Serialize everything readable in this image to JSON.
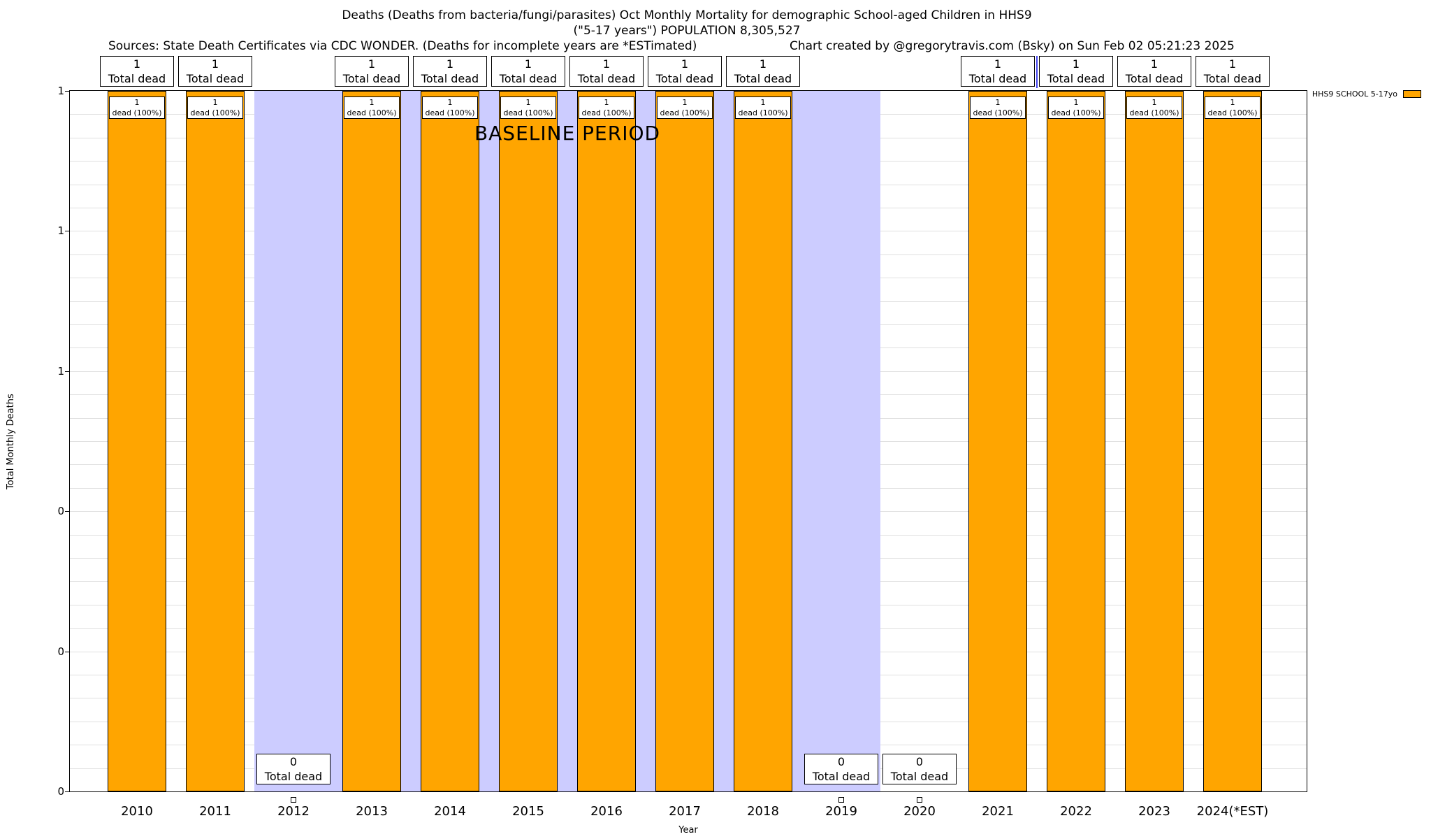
{
  "header": {
    "title_line1": "Deaths (Deaths from bacteria/fungi/parasites) Oct Monthly Mortality for demographic School-aged Children in HHS9",
    "title_line2": "(\"5-17 years\") POPULATION 8,305,527",
    "sources": "Sources: State Death Certificates via CDC WONDER. (Deaths for incomplete years are *ESTimated)",
    "credit": "Chart created by @gregorytravis.com (Bsky) on Sun Feb 02 05:21:23 2025"
  },
  "legend": {
    "label": "HHS9 SCHOOL 5-17yo",
    "swatch_color": "#FFA500"
  },
  "chart_data": {
    "type": "bar",
    "title": "Deaths (Deaths from bacteria/fungi/parasites) Oct Monthly Mortality for demographic School-aged Children in HHS9",
    "xlabel": "Year",
    "ylabel": "Total Monthly Deaths",
    "ylim": [
      0,
      1
    ],
    "grid": true,
    "categories": [
      "2010",
      "2011",
      "2012",
      "2013",
      "2014",
      "2015",
      "2016",
      "2017",
      "2018",
      "2019",
      "2020",
      "2021",
      "2022",
      "2023",
      "2024(*EST)"
    ],
    "values": [
      1,
      1,
      0,
      1,
      1,
      1,
      1,
      1,
      1,
      0,
      0,
      1,
      1,
      1,
      1
    ],
    "bar_color": "#FFA500",
    "y_tick_labels_bottom_to_top": [
      "0",
      "0",
      "0",
      "1",
      "1",
      "1"
    ],
    "y_tick_values": [
      0,
      0.2,
      0.4,
      0.6,
      0.8,
      1.0
    ],
    "labels": {
      "total_value": [
        "1",
        "1",
        "0",
        "1",
        "1",
        "1",
        "1",
        "1",
        "1",
        "0",
        "0",
        "1",
        "1",
        "1",
        "1"
      ],
      "total_caption": "Total dead",
      "inbar_value": "1",
      "inbar_caption": "dead (100%)"
    },
    "baseline_band": {
      "label": "BASELINE PERIOD",
      "from": "2012",
      "to": "2019",
      "color": "#CCCCFF"
    },
    "blue_marker": {
      "between": "2021-2022",
      "color": "#4444EE"
    }
  }
}
